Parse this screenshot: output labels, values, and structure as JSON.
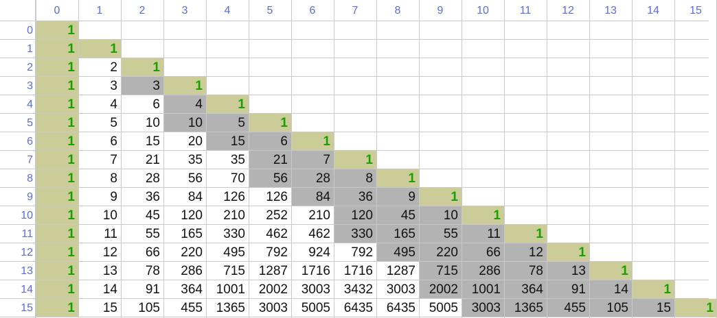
{
  "column_headers": [
    "0",
    "1",
    "2",
    "3",
    "4",
    "5",
    "6",
    "7",
    "8",
    "9",
    "10",
    "11",
    "12",
    "13",
    "14",
    "15"
  ],
  "row_headers": [
    "0",
    "1",
    "2",
    "3",
    "4",
    "5",
    "6",
    "7",
    "8",
    "9",
    "10",
    "11",
    "12",
    "13",
    "14",
    "15"
  ],
  "rows": [
    [
      "1"
    ],
    [
      "1",
      "1"
    ],
    [
      "1",
      "2",
      "1"
    ],
    [
      "1",
      "3",
      "3",
      "1"
    ],
    [
      "1",
      "4",
      "6",
      "4",
      "1"
    ],
    [
      "1",
      "5",
      "10",
      "10",
      "5",
      "1"
    ],
    [
      "1",
      "6",
      "15",
      "20",
      "15",
      "6",
      "1"
    ],
    [
      "1",
      "7",
      "21",
      "35",
      "35",
      "21",
      "7",
      "1"
    ],
    [
      "1",
      "8",
      "28",
      "56",
      "70",
      "56",
      "28",
      "8",
      "1"
    ],
    [
      "1",
      "9",
      "36",
      "84",
      "126",
      "126",
      "84",
      "36",
      "9",
      "1"
    ],
    [
      "1",
      "10",
      "45",
      "120",
      "210",
      "252",
      "210",
      "120",
      "45",
      "10",
      "1"
    ],
    [
      "1",
      "11",
      "55",
      "165",
      "330",
      "462",
      "462",
      "330",
      "165",
      "55",
      "11",
      "1"
    ],
    [
      "1",
      "12",
      "66",
      "220",
      "495",
      "792",
      "924",
      "792",
      "495",
      "220",
      "66",
      "12",
      "1"
    ],
    [
      "1",
      "13",
      "78",
      "286",
      "715",
      "1287",
      "1716",
      "1716",
      "1287",
      "715",
      "286",
      "78",
      "13",
      "1"
    ],
    [
      "1",
      "14",
      "91",
      "364",
      "1001",
      "2002",
      "3003",
      "3432",
      "3003",
      "2002",
      "1001",
      "364",
      "91",
      "14",
      "1"
    ],
    [
      "1",
      "15",
      "105",
      "455",
      "1365",
      "3003",
      "5005",
      "6435",
      "6435",
      "5005",
      "3003",
      "1365",
      "455",
      "105",
      "15",
      "1"
    ]
  ],
  "colors": {
    "header_text": "#5a6be0",
    "grid_line": "#c9c9c9",
    "highlight_olive": "#cccc99",
    "highlight_gray": "#b3b3b3",
    "one_text": "#18a000",
    "value_text": "#111111"
  }
}
